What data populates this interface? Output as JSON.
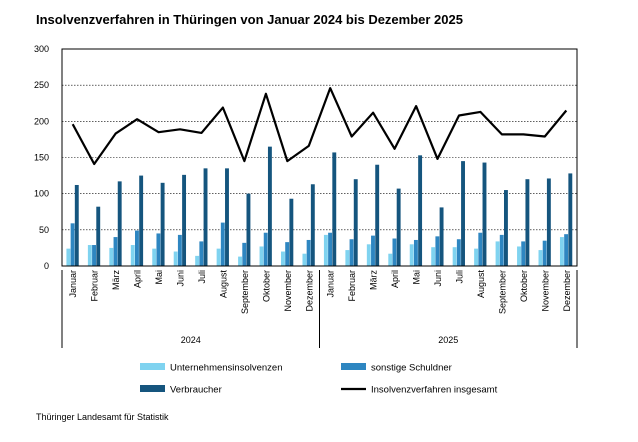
{
  "title": "Insolvenzverfahren in Thüringen von Januar 2024 bis Dezember 2025",
  "source": "Thüringer Landesamt für Statistik",
  "chart_data": {
    "type": "bar",
    "ylim": [
      0,
      300
    ],
    "yticks": [
      "0",
      "50",
      "100",
      "150",
      "200",
      "250",
      "300"
    ],
    "grid": true,
    "legend_position": "bottom",
    "categories": [
      "Januar",
      "Februar",
      "März",
      "April",
      "Mai",
      "Juni",
      "Juli",
      "August",
      "September",
      "Oktober",
      "November",
      "Dezember",
      "Januar",
      "Februar",
      "März",
      "April",
      "Mai",
      "Juni",
      "Juli",
      "August",
      "September",
      "Oktober",
      "November",
      "Dezember"
    ],
    "groups": [
      {
        "label": "2024",
        "count": 12
      },
      {
        "label": "2025",
        "count": 12
      }
    ],
    "series": [
      {
        "name": "Unternehmensinsolvenzen",
        "type": "bar",
        "color": "#7fd3f0",
        "values": [
          24,
          29,
          25,
          29,
          24,
          20,
          14,
          24,
          13,
          27,
          20,
          17,
          43,
          22,
          30,
          17,
          30,
          26,
          26,
          24,
          34,
          27,
          22,
          40
        ]
      },
      {
        "name": "sonstige Schuldner",
        "type": "bar",
        "color": "#2e86c1",
        "values": [
          59,
          29,
          40,
          49,
          45,
          43,
          34,
          60,
          32,
          46,
          33,
          36,
          46,
          37,
          42,
          38,
          36,
          41,
          37,
          46,
          43,
          34,
          35,
          44
        ]
      },
      {
        "name": "Verbraucher",
        "type": "bar",
        "color": "#15557e",
        "values": [
          112,
          82,
          117,
          125,
          115,
          126,
          135,
          135,
          100,
          165,
          93,
          113,
          157,
          120,
          140,
          107,
          153,
          81,
          145,
          143,
          105,
          120,
          121,
          128
        ]
      },
      {
        "name": "Insolvenzverfahren insgesamt",
        "type": "line",
        "color": "#000000",
        "values": [
          196,
          141,
          183,
          203,
          185,
          189,
          184,
          219,
          145,
          238,
          145,
          166,
          246,
          179,
          212,
          162,
          221,
          148,
          208,
          213,
          182,
          182,
          179,
          215
        ]
      }
    ]
  }
}
